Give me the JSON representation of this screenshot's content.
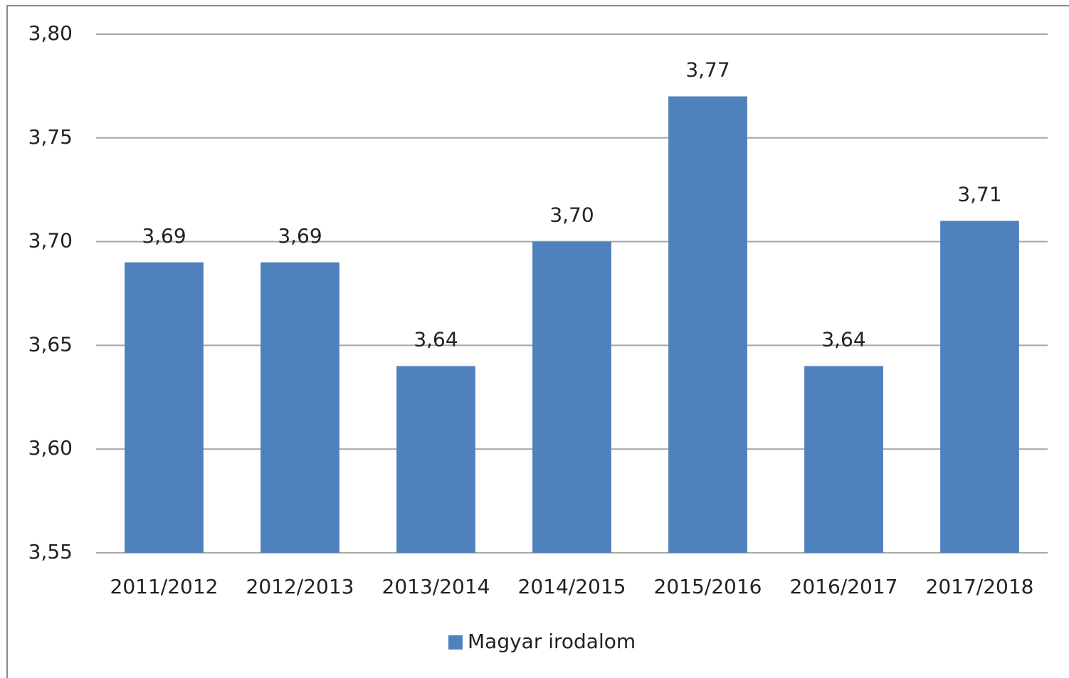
{
  "chart_data": {
    "type": "bar",
    "categories": [
      "2011/2012",
      "2012/2013",
      "2013/2014",
      "2014/2015",
      "2015/2016",
      "2016/2017",
      "2017/2018"
    ],
    "series": [
      {
        "name": "Magyar irodalom",
        "color": "#4f81bd",
        "values": [
          3.69,
          3.69,
          3.64,
          3.7,
          3.77,
          3.64,
          3.71
        ],
        "value_labels": [
          "3,69",
          "3,69",
          "3,64",
          "3,70",
          "3,77",
          "3,64",
          "3,71"
        ]
      }
    ],
    "ylim": [
      3.55,
      3.8
    ],
    "yticks": [
      {
        "value": 3.55,
        "label": "3,55"
      },
      {
        "value": 3.6,
        "label": "3,60"
      },
      {
        "value": 3.65,
        "label": "3,65"
      },
      {
        "value": 3.7,
        "label": "3,70"
      },
      {
        "value": 3.75,
        "label": "3,75"
      },
      {
        "value": 3.8,
        "label": "3,80"
      }
    ],
    "grid": true,
    "legend": "bottom"
  }
}
